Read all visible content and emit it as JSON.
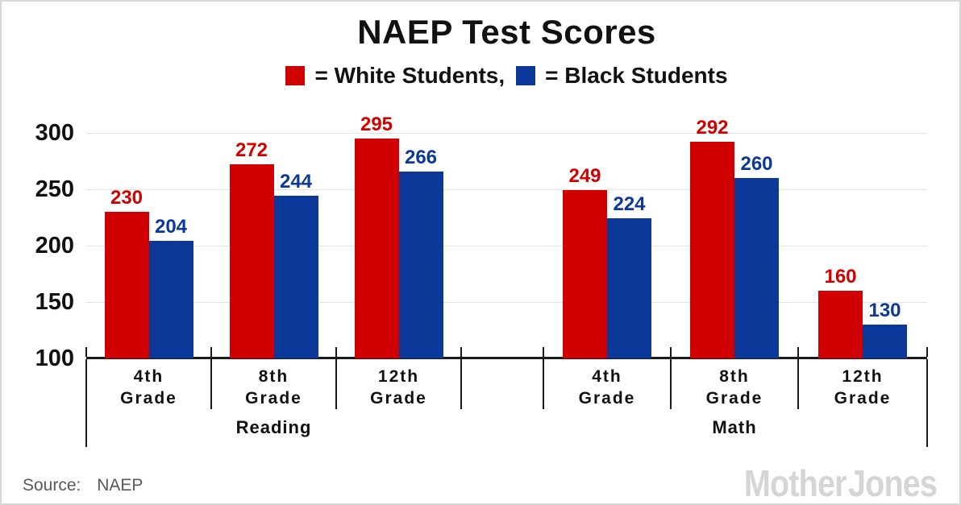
{
  "title": "NAEP Test Scores",
  "legend": {
    "items": [
      {
        "label": "= White Students,",
        "series": "White Students",
        "color": "#d00000"
      },
      {
        "label": "= Black Students",
        "series": "Black Students",
        "color": "#0b3899"
      }
    ]
  },
  "chart_data": {
    "type": "bar",
    "title": "NAEP Test Scores",
    "categories": [
      "4th Grade",
      "8th Grade",
      "12th Grade",
      "4th Grade",
      "8th Grade",
      "12th Grade"
    ],
    "sections": [
      {
        "label": "Reading",
        "category_indexes": [
          0,
          1,
          2
        ]
      },
      {
        "label": "Math",
        "category_indexes": [
          3,
          4,
          5
        ]
      }
    ],
    "series": [
      {
        "name": "White Students",
        "color": "#d00000",
        "values": [
          230,
          272,
          295,
          249,
          292,
          160
        ]
      },
      {
        "name": "Black Students",
        "color": "#0b3899",
        "values": [
          204,
          244,
          266,
          224,
          260,
          130
        ]
      }
    ],
    "ylim": [
      100,
      300
    ],
    "yticks": [
      100,
      150,
      200,
      250,
      300
    ],
    "grid": true,
    "gridline_color": "#e2e2e2",
    "axis_color": "#1a1a1a",
    "value_labels_shown": true,
    "legend_position": "top"
  },
  "footer": {
    "source_label": "Source:",
    "source_value": "NAEP",
    "brand": "Mother Jones"
  }
}
